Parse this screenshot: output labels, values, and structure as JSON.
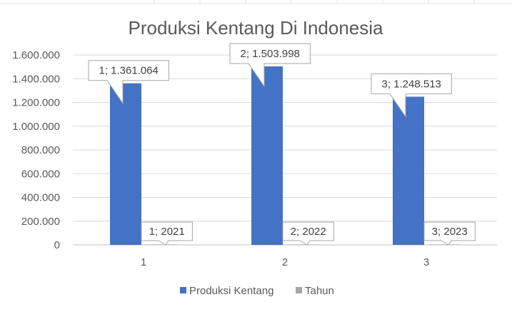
{
  "chart_data": {
    "type": "bar",
    "title": "Produksi Kentang Di Indonesia",
    "categories": [
      "1",
      "2",
      "3"
    ],
    "series": [
      {
        "name": "Produksi Kentang",
        "values": [
          1361064,
          1503998,
          1248513
        ],
        "color": "#4472C4",
        "data_labels": [
          "1; 1.361.064",
          "2; 1.503.998",
          "3; 1.248.513"
        ]
      },
      {
        "name": "Tahun",
        "values": [
          2021,
          2022,
          2023
        ],
        "color": "#A5A5A5",
        "data_labels": [
          "1; 2021",
          "2; 2022",
          "3; 2023"
        ]
      }
    ],
    "y_ticks": [
      "0",
      "200.000",
      "400.000",
      "600.000",
      "800.000",
      "1.000.000",
      "1.200.000",
      "1.400.000",
      "1.600.000"
    ],
    "ylim": [
      0,
      1600000
    ],
    "y_step": 200000,
    "grid": true,
    "legend": "bottom"
  }
}
